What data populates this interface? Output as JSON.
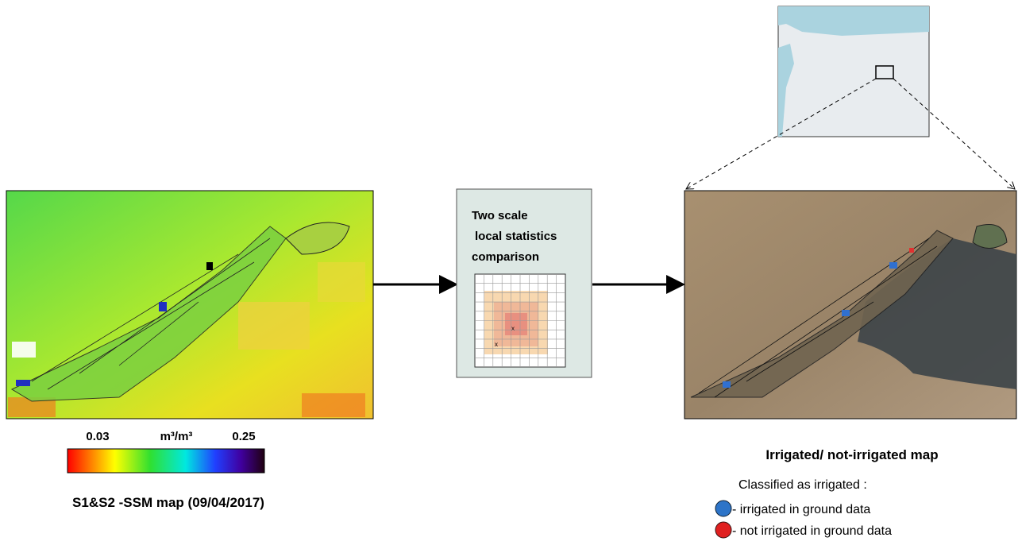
{
  "left_panel": {
    "colorbar": {
      "min_label": "0.03",
      "unit": "m³/m³",
      "max_label": "0.25"
    },
    "caption": "S1&S2 -SSM map (09/04/2017)"
  },
  "middle_panel": {
    "lines": [
      "Two scale",
      "local  statistics",
      "comparison"
    ]
  },
  "right_panel": {
    "title": "Irrigated/ not-irrigated map",
    "legend_heading": "Classified as irrigated :",
    "legend": [
      {
        "label": "- irrigated in ground data"
      },
      {
        "label": "- not irrigated in ground data"
      }
    ]
  }
}
